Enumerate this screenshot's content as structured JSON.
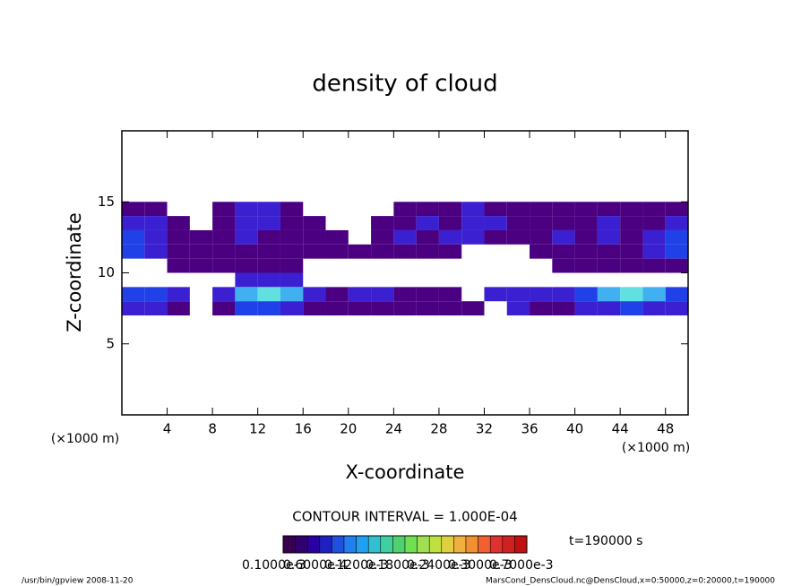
{
  "chart_data": {
    "type": "heatmap",
    "title": "density of cloud",
    "x_label": "X-coordinate",
    "y_label": "Z-coordinate",
    "x_unit": "(×1000 m)",
    "y_unit": "(×1000 m)",
    "xlim": [
      0,
      50
    ],
    "ylim": [
      0,
      20
    ],
    "xticks": [
      4,
      8,
      12,
      16,
      20,
      24,
      28,
      32,
      36,
      40,
      44,
      48
    ],
    "yticks": [
      5,
      10,
      15
    ],
    "x": [
      1,
      3,
      5,
      7,
      9,
      11,
      13,
      15,
      17,
      19,
      21,
      23,
      25,
      27,
      29,
      31,
      33,
      35,
      37,
      39,
      41,
      43,
      45,
      47,
      49
    ],
    "cell_width": 2,
    "cell_height": 1,
    "z": [
      14.5,
      13.5,
      12.5,
      11.5,
      10.5,
      9.5,
      8.5,
      7.5
    ],
    "values": [
      [
        0.0001,
        0.0001,
        null,
        null,
        0.0001,
        0.0002,
        0.0002,
        0.0001,
        null,
        null,
        null,
        null,
        0.0001,
        0.0001,
        0.0001,
        0.0002,
        0.0001,
        0.0001,
        0.0001,
        0.0001,
        0.0001,
        0.0001,
        0.0001,
        0.0001,
        0.0001
      ],
      [
        0.0002,
        0.0002,
        0.0001,
        null,
        0.0001,
        0.0002,
        0.0002,
        0.0001,
        0.0001,
        null,
        null,
        0.0001,
        0.0001,
        0.0002,
        0.0001,
        0.0002,
        0.0002,
        0.0001,
        0.0001,
        0.0001,
        0.0001,
        0.0002,
        0.0001,
        0.0001,
        0.0002
      ],
      [
        0.0003,
        0.0002,
        0.0001,
        0.0001,
        0.0001,
        0.0002,
        0.0001,
        0.0001,
        0.0001,
        0.0001,
        null,
        0.0001,
        0.0002,
        0.0001,
        0.0002,
        0.0002,
        0.0001,
        0.0001,
        0.0001,
        0.0002,
        0.0001,
        0.0002,
        0.0001,
        0.0002,
        0.0003
      ],
      [
        0.0003,
        0.0002,
        0.0001,
        0.0001,
        0.0001,
        0.0001,
        0.0001,
        0.0001,
        0.0001,
        0.0001,
        0.0001,
        0.0001,
        0.0001,
        0.0001,
        0.0001,
        null,
        null,
        null,
        0.0001,
        0.0001,
        0.0001,
        0.0001,
        0.0001,
        0.0002,
        0.0003
      ],
      [
        null,
        null,
        0.0001,
        0.0001,
        0.0001,
        0.0001,
        0.0001,
        0.0001,
        null,
        null,
        null,
        null,
        null,
        null,
        null,
        null,
        null,
        null,
        null,
        0.0001,
        0.0001,
        0.0001,
        0.0001,
        0.0001,
        0.0001
      ],
      [
        null,
        null,
        null,
        null,
        null,
        0.0002,
        0.0002,
        0.0002,
        null,
        null,
        null,
        null,
        null,
        null,
        null,
        null,
        null,
        null,
        null,
        null,
        null,
        null,
        null,
        null,
        null
      ],
      [
        0.0003,
        0.0003,
        0.0002,
        null,
        0.0002,
        0.0004,
        0.0005,
        0.0004,
        0.0002,
        0.0001,
        0.0002,
        0.0002,
        0.0001,
        0.0001,
        0.0001,
        null,
        0.0002,
        0.0002,
        0.0002,
        0.0002,
        0.0003,
        0.0004,
        0.0005,
        0.0004,
        0.0003
      ],
      [
        0.0002,
        0.0002,
        0.0001,
        null,
        0.0001,
        0.0003,
        0.0003,
        0.0002,
        0.0001,
        0.0001,
        0.0001,
        0.0001,
        0.0001,
        0.0001,
        0.0001,
        0.0001,
        null,
        0.0002,
        0.0001,
        0.0001,
        0.0002,
        0.0002,
        0.0003,
        0.0002,
        0.0002
      ]
    ],
    "clim": [
      0.0001,
      0.0007
    ],
    "colormap": [
      "#4b0082",
      "#5a10b0",
      "#3a20d0",
      "#2040e8",
      "#2a70f0",
      "#40b0f0",
      "#60e0e0"
    ],
    "colorbar_colors": [
      "#3a0050",
      "#300070",
      "#2a00a0",
      "#2020c0",
      "#2050e0",
      "#2080f0",
      "#20a0f0",
      "#30c0d0",
      "#40d0a0",
      "#50d070",
      "#70e050",
      "#a0e050",
      "#c0e040",
      "#e0d040",
      "#f0b040",
      "#f09030",
      "#f06030",
      "#e03030",
      "#d02020",
      "#c01010"
    ],
    "colorbar_labels": [
      "0.1000e-3",
      "0.6000e-4",
      "0.1200e-3",
      "0.1800e-3",
      "0.2400e-3",
      "0.3000e-3",
      "0.7000e-3"
    ],
    "contour_interval": "CONTOUR INTERVAL = 1.000E-04",
    "time": "t=190000 s",
    "footer_left": "/usr/bin/gpview  2008-11-20",
    "footer_right": "MarsCond_DensCloud.nc@DensCloud,x=0:50000,z=0:20000,t=190000"
  }
}
